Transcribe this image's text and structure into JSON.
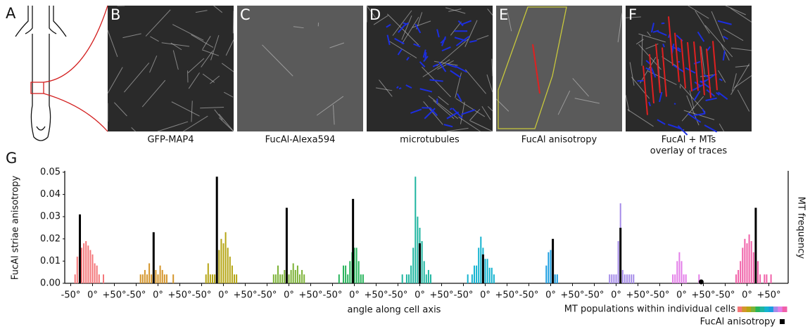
{
  "panels": [
    {
      "label": "A"
    },
    {
      "label": "B",
      "caption": [
        "GFP-MAP4"
      ]
    },
    {
      "label": "C",
      "caption": [
        "FucAl-Alexa594"
      ]
    },
    {
      "label": "D",
      "caption": [
        "microtubules"
      ]
    },
    {
      "label": "E",
      "caption": [
        "FucAl anisotropy"
      ]
    },
    {
      "label": "F",
      "caption": [
        "FucAl + MTs",
        "overlay of traces"
      ]
    }
  ],
  "chart_data": {
    "type": "bar",
    "label": "G",
    "ylabel": "FucAl striae anisotropy",
    "y2label": "MT frequency",
    "xlabel": "angle along cell axis",
    "ylim": [
      0,
      0.05
    ],
    "yticks": [
      {
        "value": 0,
        "label": "0.00"
      },
      0.01,
      0.02,
      0.03,
      0.04,
      0.05
    ],
    "xlim": [
      -75,
      75
    ],
    "xticks": [
      {
        "value": -50,
        "label": "-50°"
      },
      {
        "value": 0,
        "label": "0°"
      },
      {
        "value": 50,
        "label": "+50°"
      }
    ],
    "x": [
      -55,
      -50,
      -45,
      -40,
      -35,
      -30,
      -25,
      -20,
      -15,
      -10,
      -5,
      0,
      5,
      10,
      15,
      20,
      25,
      30,
      35,
      40,
      45,
      50,
      55
    ],
    "series": [
      {
        "color": "#f4777a",
        "values": [
          0,
          0,
          0,
          0.004,
          0.012,
          0.012,
          0.016,
          0.018,
          0.019,
          0.017,
          0.015,
          0.013,
          0.009,
          0.008,
          0.004,
          0,
          0.004,
          0,
          0,
          0,
          0,
          0,
          0
        ]
      },
      {
        "color": "#d4952a",
        "values": [
          0,
          0,
          0,
          0.004,
          0.004,
          0.006,
          0.004,
          0.009,
          0.004,
          0.004,
          0.006,
          0.004,
          0.008,
          0.006,
          0.004,
          0.004,
          0,
          0,
          0.004,
          0,
          0,
          0,
          0
        ]
      },
      {
        "color": "#b5a514",
        "values": [
          0,
          0,
          0,
          0.004,
          0.009,
          0.004,
          0.004,
          0.004,
          0.004,
          0.015,
          0.02,
          0.018,
          0.023,
          0.016,
          0.012,
          0.008,
          0.004,
          0.004,
          0,
          0,
          0,
          0,
          0
        ]
      },
      {
        "color": "#7cb236",
        "values": [
          0,
          0,
          0,
          0,
          0.004,
          0.004,
          0.008,
          0.004,
          0.004,
          0.006,
          0.008,
          0.004,
          0.006,
          0.009,
          0.006,
          0.008,
          0.004,
          0.006,
          0.004,
          0,
          0,
          0,
          0
        ]
      },
      {
        "color": "#27b45b",
        "values": [
          0,
          0,
          0,
          0,
          0.004,
          0,
          0.008,
          0.008,
          0.004,
          0.01,
          0.014,
          0.016,
          0.016,
          0.01,
          0.004,
          0.004,
          0,
          0,
          0,
          0,
          0,
          0,
          0
        ]
      },
      {
        "color": "#1fb5a0",
        "values": [
          0,
          0,
          0,
          0.004,
          0,
          0.004,
          0.004,
          0.008,
          0.016,
          0.048,
          0.03,
          0.025,
          0.019,
          0.01,
          0.004,
          0.006,
          0.004,
          0,
          0,
          0,
          0,
          0,
          0
        ]
      },
      {
        "color": "#14b3d0",
        "values": [
          0,
          0,
          0,
          0.004,
          0,
          0.004,
          0.008,
          0.008,
          0.016,
          0.021,
          0.016,
          0.011,
          0.011,
          0.007,
          0.007,
          0.004,
          0,
          0,
          0,
          0,
          0,
          0,
          0
        ]
      },
      {
        "color": "#1a9de0",
        "values": [
          0,
          0,
          0,
          0,
          0,
          0,
          0,
          0,
          0,
          0.008,
          0.014,
          0.015,
          0.01,
          0.004,
          0.004,
          0,
          0,
          0,
          0,
          0,
          0,
          0,
          0
        ]
      },
      {
        "color": "#a58be8",
        "values": [
          0,
          0,
          0,
          0,
          0,
          0,
          0,
          0,
          0.004,
          0.004,
          0.004,
          0.004,
          0.019,
          0.036,
          0.006,
          0.004,
          0.004,
          0.004,
          0.004,
          0.004,
          0,
          0,
          0
        ]
      },
      {
        "color": "#e37ee8",
        "values": [
          0,
          0,
          0,
          0,
          0,
          0,
          0,
          0.004,
          0.004,
          0.01,
          0.014,
          0.01,
          0.004,
          0.004,
          0,
          0,
          0,
          0,
          0,
          0.004,
          0,
          0,
          0
        ]
      },
      {
        "color": "#f060a8",
        "values": [
          0,
          0,
          0,
          0,
          0,
          0,
          0.004,
          0.006,
          0.01,
          0.016,
          0.02,
          0.018,
          0.022,
          0.019,
          0.014,
          0.008,
          0.01,
          0.004,
          0,
          0.004,
          0.004,
          0,
          0.004
        ]
      }
    ],
    "anisotropy": {
      "color": "#000000",
      "angles": [
        -29,
        -10,
        -15,
        -5,
        -3,
        0,
        -5,
        5,
        10,
        45,
        20
      ],
      "values": [
        0.031,
        0.023,
        0.048,
        0.034,
        0.038,
        0.018,
        0.013,
        0.02,
        0.025,
        0.001,
        0.034
      ]
    },
    "legend": {
      "populations": "MT populations within individual cells",
      "anisotropy": "FucAl anisotropy"
    }
  }
}
